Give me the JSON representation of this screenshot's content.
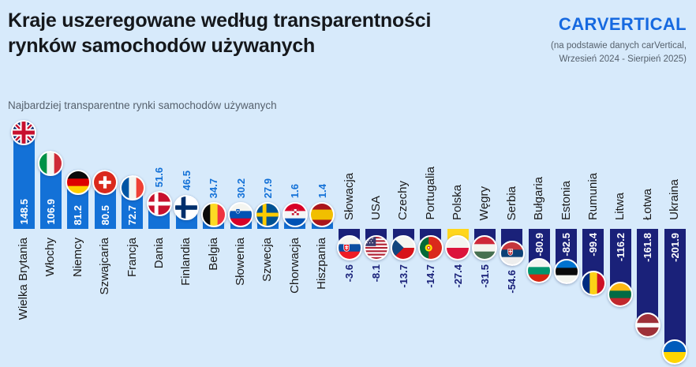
{
  "header": {
    "title_line1": "Kraje uszeregowane według transparentności",
    "title_line2": "rynków samochodów używanych",
    "logo_text_car": "CAR",
    "logo_text_v": "V",
    "logo_text_ertical": "ERTICAL",
    "source_line1": "(na podstawie danych carVertical,",
    "source_line2": "Wrzesień 2024 - Sierpień 2025)"
  },
  "chart_label": "Najbardziej transparentne rynki samochodów używanych",
  "colors": {
    "background": "#D7EAFB",
    "positive_bar": "#1371D7",
    "negative_bar": "#1A2179",
    "highlight_bar": "#FFD61C",
    "value_on_bar": "#FFFFFF",
    "title_text": "#15181C",
    "muted_text": "#56616D",
    "label_text": "#1A1A1A",
    "logo_blue": "#1669E0"
  },
  "chart_data": {
    "type": "bar",
    "title": "Kraje uszeregowane według transparentności rynków samochodów używanych",
    "subtitle": "Najbardziej transparentne rynki samochodów używanych",
    "xlabel": "",
    "ylabel": "",
    "ylim": [
      -210,
      155
    ],
    "baseline": 0,
    "grid": false,
    "legend": "none",
    "highlight_category": "Polska",
    "categories": [
      "Wielka Brytania",
      "Włochy",
      "Niemcy",
      "Szwajcaria",
      "Francja",
      "Dania",
      "Finlandia",
      "Belgia",
      "Słowenia",
      "Szwecja",
      "Chorwacja",
      "Hiszpania",
      "Słowacja",
      "USA",
      "Czechy",
      "Portugalia",
      "Polska",
      "Węgry",
      "Serbia",
      "Bułgaria",
      "Estonia",
      "Rumunia",
      "Litwa",
      "Łotwa",
      "Ukraina"
    ],
    "values": [
      148.5,
      106.9,
      81.2,
      80.5,
      72.7,
      51.6,
      46.5,
      34.7,
      30.2,
      27.9,
      1.6,
      1.4,
      -3.6,
      -8.1,
      -13.7,
      -14.7,
      -27.4,
      -31.5,
      -54.6,
      -80.9,
      -82.5,
      -99.4,
      -116.2,
      -161.8,
      -201.9
    ],
    "flags": [
      "gb",
      "it",
      "de",
      "ch",
      "fr",
      "dk",
      "fi",
      "be",
      "si",
      "se",
      "hr",
      "es",
      "sk",
      "us",
      "cz",
      "pt",
      "pl",
      "hu",
      "rs",
      "bg",
      "ee",
      "ro",
      "lt",
      "lv",
      "ua"
    ]
  }
}
